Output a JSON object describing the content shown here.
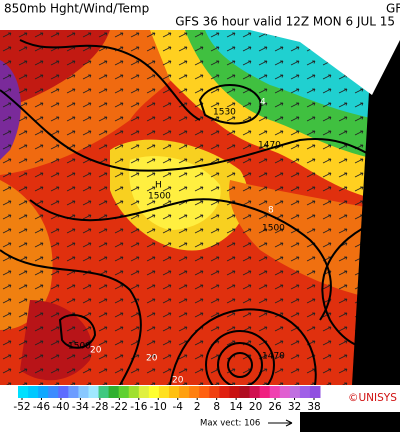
{
  "header": {
    "title": "850mb Hght/Wind/Temp",
    "corner": "GF",
    "subtitle": "GFS 36 hour valid 12Z MON  6 JUL 15"
  },
  "map": {
    "contour_labels": [
      "1530",
      "1470",
      "1500",
      "1500",
      "1470",
      "1500"
    ],
    "temp_labels": [
      "4",
      "8",
      "20",
      "20",
      "20"
    ],
    "high_marker": "H"
  },
  "colorbar": {
    "ticks": [
      -52,
      -46,
      -40,
      -34,
      -28,
      -22,
      -16,
      -10,
      -4,
      2,
      8,
      14,
      20,
      26,
      32,
      38
    ]
  },
  "credit": "©UNISYS",
  "max_vector": "Max vect: 106"
}
